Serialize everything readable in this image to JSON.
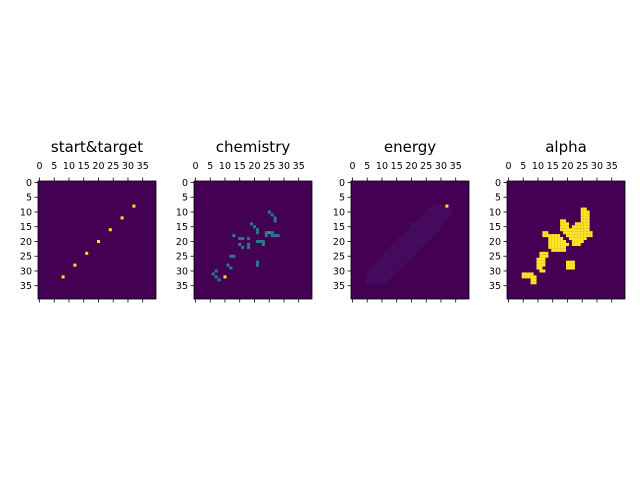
{
  "chart_data": {
    "type": "heatmap",
    "colormap": "viridis",
    "grid": false,
    "grid_size": [
      40,
      40
    ],
    "xticks": [
      "0",
      "5",
      "10",
      "15",
      "20",
      "25",
      "30",
      "35"
    ],
    "yticks": [
      "0",
      "5",
      "10",
      "15",
      "20",
      "25",
      "30",
      "35"
    ],
    "xtick_position": "top",
    "panels": [
      {
        "title": "start&target",
        "value_range": [
          0,
          1
        ],
        "cells": [
          {
            "x": 32,
            "y": 8,
            "v": 1
          },
          {
            "x": 28,
            "y": 12,
            "v": 1
          },
          {
            "x": 24,
            "y": 16,
            "v": 1
          },
          {
            "x": 20,
            "y": 20,
            "v": 1
          },
          {
            "x": 16,
            "y": 24,
            "v": 1
          },
          {
            "x": 12,
            "y": 28,
            "v": 1
          },
          {
            "x": 8,
            "y": 32,
            "v": 1
          }
        ]
      },
      {
        "title": "chemistry",
        "value_range": [
          0,
          1
        ],
        "cells": [
          {
            "x": 25,
            "y": 10,
            "v": 0.42
          },
          {
            "x": 26,
            "y": 11,
            "v": 0.42
          },
          {
            "x": 27,
            "y": 12,
            "v": 0.42
          },
          {
            "x": 27,
            "y": 13,
            "v": 0.42
          },
          {
            "x": 19,
            "y": 14,
            "v": 0.42
          },
          {
            "x": 20,
            "y": 15,
            "v": 0.42
          },
          {
            "x": 21,
            "y": 16,
            "v": 0.42
          },
          {
            "x": 21,
            "y": 17,
            "v": 0.42
          },
          {
            "x": 24,
            "y": 17,
            "v": 0.42
          },
          {
            "x": 25,
            "y": 17,
            "v": 0.6
          },
          {
            "x": 26,
            "y": 17,
            "v": 0.42
          },
          {
            "x": 24,
            "y": 18,
            "v": 0.42
          },
          {
            "x": 26,
            "y": 18,
            "v": 0.42
          },
          {
            "x": 27,
            "y": 18,
            "v": 0.42
          },
          {
            "x": 28,
            "y": 18,
            "v": 0.42
          },
          {
            "x": 13,
            "y": 18,
            "v": 0.42
          },
          {
            "x": 15,
            "y": 19,
            "v": 0.42
          },
          {
            "x": 16,
            "y": 19,
            "v": 0.42
          },
          {
            "x": 18,
            "y": 19,
            "v": 0.42
          },
          {
            "x": 21,
            "y": 20,
            "v": 0.42
          },
          {
            "x": 22,
            "y": 20,
            "v": 0.42
          },
          {
            "x": 23,
            "y": 20,
            "v": 0.42
          },
          {
            "x": 15,
            "y": 21,
            "v": 0.42
          },
          {
            "x": 18,
            "y": 21,
            "v": 0.42
          },
          {
            "x": 23,
            "y": 21,
            "v": 0.42
          },
          {
            "x": 16,
            "y": 22,
            "v": 0.42
          },
          {
            "x": 18,
            "y": 22,
            "v": 0.42
          },
          {
            "x": 12,
            "y": 25,
            "v": 0.42
          },
          {
            "x": 13,
            "y": 25,
            "v": 0.42
          },
          {
            "x": 21,
            "y": 27,
            "v": 0.42
          },
          {
            "x": 21,
            "y": 28,
            "v": 0.42
          },
          {
            "x": 11,
            "y": 28,
            "v": 0.42
          },
          {
            "x": 12,
            "y": 29,
            "v": 0.42
          },
          {
            "x": 7,
            "y": 30,
            "v": 0.42
          },
          {
            "x": 6,
            "y": 31,
            "v": 0.42
          },
          {
            "x": 7,
            "y": 32,
            "v": 0.42
          },
          {
            "x": 10,
            "y": 32,
            "v": 1
          },
          {
            "x": 8,
            "y": 33,
            "v": 0.42
          }
        ]
      },
      {
        "title": "energy",
        "value_range": [
          0,
          1
        ],
        "background_region": {
          "x_range": [
            5,
            33
          ],
          "y_range": [
            8,
            34
          ],
          "v": 0.04
        },
        "cells": [
          {
            "x": 32,
            "y": 8,
            "v": 1
          }
        ]
      },
      {
        "title": "alpha",
        "value_range": [
          0,
          1
        ],
        "cells": [
          {
            "x": 25,
            "y": 9,
            "v": 1
          },
          {
            "x": 26,
            "y": 9,
            "v": 1
          },
          {
            "x": 25,
            "y": 10,
            "v": 1
          },
          {
            "x": 26,
            "y": 10,
            "v": 1
          },
          {
            "x": 27,
            "y": 10,
            "v": 1
          },
          {
            "x": 25,
            "y": 11,
            "v": 1
          },
          {
            "x": 26,
            "y": 11,
            "v": 1
          },
          {
            "x": 27,
            "y": 11,
            "v": 1
          },
          {
            "x": 25,
            "y": 12,
            "v": 1
          },
          {
            "x": 26,
            "y": 12,
            "v": 1
          },
          {
            "x": 27,
            "y": 12,
            "v": 1
          },
          {
            "x": 18,
            "y": 13,
            "v": 1
          },
          {
            "x": 19,
            "y": 13,
            "v": 1
          },
          {
            "x": 25,
            "y": 13,
            "v": 1
          },
          {
            "x": 26,
            "y": 13,
            "v": 1
          },
          {
            "x": 27,
            "y": 13,
            "v": 1
          },
          {
            "x": 18,
            "y": 14,
            "v": 1
          },
          {
            "x": 19,
            "y": 14,
            "v": 1
          },
          {
            "x": 20,
            "y": 14,
            "v": 1
          },
          {
            "x": 23,
            "y": 14,
            "v": 1
          },
          {
            "x": 24,
            "y": 14,
            "v": 1
          },
          {
            "x": 25,
            "y": 14,
            "v": 1
          },
          {
            "x": 26,
            "y": 14,
            "v": 1
          },
          {
            "x": 27,
            "y": 14,
            "v": 1
          },
          {
            "x": 18,
            "y": 15,
            "v": 1
          },
          {
            "x": 19,
            "y": 15,
            "v": 1
          },
          {
            "x": 20,
            "y": 15,
            "v": 1
          },
          {
            "x": 22,
            "y": 15,
            "v": 1
          },
          {
            "x": 23,
            "y": 15,
            "v": 1
          },
          {
            "x": 24,
            "y": 15,
            "v": 1
          },
          {
            "x": 25,
            "y": 15,
            "v": 1
          },
          {
            "x": 26,
            "y": 15,
            "v": 1
          },
          {
            "x": 27,
            "y": 15,
            "v": 1
          },
          {
            "x": 18,
            "y": 16,
            "v": 1
          },
          {
            "x": 19,
            "y": 16,
            "v": 1
          },
          {
            "x": 20,
            "y": 16,
            "v": 1
          },
          {
            "x": 21,
            "y": 16,
            "v": 1
          },
          {
            "x": 22,
            "y": 16,
            "v": 1
          },
          {
            "x": 23,
            "y": 16,
            "v": 1
          },
          {
            "x": 24,
            "y": 16,
            "v": 1
          },
          {
            "x": 25,
            "y": 16,
            "v": 1
          },
          {
            "x": 26,
            "y": 16,
            "v": 1
          },
          {
            "x": 27,
            "y": 16,
            "v": 1
          },
          {
            "x": 12,
            "y": 17,
            "v": 1
          },
          {
            "x": 13,
            "y": 17,
            "v": 1
          },
          {
            "x": 19,
            "y": 17,
            "v": 1
          },
          {
            "x": 20,
            "y": 17,
            "v": 1
          },
          {
            "x": 21,
            "y": 17,
            "v": 1
          },
          {
            "x": 22,
            "y": 17,
            "v": 1
          },
          {
            "x": 23,
            "y": 17,
            "v": 1
          },
          {
            "x": 24,
            "y": 17,
            "v": 1
          },
          {
            "x": 25,
            "y": 17,
            "v": 1
          },
          {
            "x": 26,
            "y": 17,
            "v": 1
          },
          {
            "x": 27,
            "y": 17,
            "v": 1
          },
          {
            "x": 28,
            "y": 17,
            "v": 1
          },
          {
            "x": 12,
            "y": 18,
            "v": 1
          },
          {
            "x": 13,
            "y": 18,
            "v": 1
          },
          {
            "x": 14,
            "y": 18,
            "v": 1
          },
          {
            "x": 15,
            "y": 18,
            "v": 1
          },
          {
            "x": 16,
            "y": 18,
            "v": 1
          },
          {
            "x": 17,
            "y": 18,
            "v": 1
          },
          {
            "x": 20,
            "y": 18,
            "v": 1
          },
          {
            "x": 21,
            "y": 18,
            "v": 1
          },
          {
            "x": 22,
            "y": 18,
            "v": 1
          },
          {
            "x": 23,
            "y": 18,
            "v": 1
          },
          {
            "x": 24,
            "y": 18,
            "v": 1
          },
          {
            "x": 25,
            "y": 18,
            "v": 1
          },
          {
            "x": 26,
            "y": 18,
            "v": 1
          },
          {
            "x": 27,
            "y": 18,
            "v": 1
          },
          {
            "x": 28,
            "y": 18,
            "v": 1
          },
          {
            "x": 14,
            "y": 19,
            "v": 1
          },
          {
            "x": 15,
            "y": 19,
            "v": 1
          },
          {
            "x": 16,
            "y": 19,
            "v": 1
          },
          {
            "x": 17,
            "y": 19,
            "v": 1
          },
          {
            "x": 18,
            "y": 19,
            "v": 1
          },
          {
            "x": 21,
            "y": 19,
            "v": 1
          },
          {
            "x": 22,
            "y": 19,
            "v": 1
          },
          {
            "x": 23,
            "y": 19,
            "v": 1
          },
          {
            "x": 24,
            "y": 19,
            "v": 1
          },
          {
            "x": 25,
            "y": 19,
            "v": 1
          },
          {
            "x": 26,
            "y": 19,
            "v": 1
          },
          {
            "x": 14,
            "y": 20,
            "v": 1
          },
          {
            "x": 15,
            "y": 20,
            "v": 1
          },
          {
            "x": 16,
            "y": 20,
            "v": 1
          },
          {
            "x": 17,
            "y": 20,
            "v": 1
          },
          {
            "x": 18,
            "y": 20,
            "v": 1
          },
          {
            "x": 19,
            "y": 20,
            "v": 1
          },
          {
            "x": 22,
            "y": 20,
            "v": 1
          },
          {
            "x": 23,
            "y": 20,
            "v": 1
          },
          {
            "x": 24,
            "y": 20,
            "v": 1
          },
          {
            "x": 25,
            "y": 20,
            "v": 1
          },
          {
            "x": 14,
            "y": 21,
            "v": 1
          },
          {
            "x": 15,
            "y": 21,
            "v": 1
          },
          {
            "x": 16,
            "y": 21,
            "v": 1
          },
          {
            "x": 17,
            "y": 21,
            "v": 1
          },
          {
            "x": 18,
            "y": 21,
            "v": 1
          },
          {
            "x": 19,
            "y": 21,
            "v": 1
          },
          {
            "x": 20,
            "y": 21,
            "v": 1
          },
          {
            "x": 22,
            "y": 21,
            "v": 1
          },
          {
            "x": 23,
            "y": 21,
            "v": 1
          },
          {
            "x": 24,
            "y": 21,
            "v": 1
          },
          {
            "x": 14,
            "y": 22,
            "v": 1
          },
          {
            "x": 15,
            "y": 22,
            "v": 1
          },
          {
            "x": 16,
            "y": 22,
            "v": 1
          },
          {
            "x": 17,
            "y": 22,
            "v": 1
          },
          {
            "x": 18,
            "y": 22,
            "v": 1
          },
          {
            "x": 19,
            "y": 22,
            "v": 1
          },
          {
            "x": 15,
            "y": 23,
            "v": 1
          },
          {
            "x": 16,
            "y": 23,
            "v": 1
          },
          {
            "x": 17,
            "y": 23,
            "v": 1
          },
          {
            "x": 18,
            "y": 23,
            "v": 1
          },
          {
            "x": 19,
            "y": 23,
            "v": 1
          },
          {
            "x": 11,
            "y": 24,
            "v": 1
          },
          {
            "x": 12,
            "y": 24,
            "v": 1
          },
          {
            "x": 13,
            "y": 24,
            "v": 1
          },
          {
            "x": 11,
            "y": 25,
            "v": 1
          },
          {
            "x": 12,
            "y": 25,
            "v": 1
          },
          {
            "x": 13,
            "y": 25,
            "v": 1
          },
          {
            "x": 10,
            "y": 26,
            "v": 1
          },
          {
            "x": 11,
            "y": 26,
            "v": 1
          },
          {
            "x": 12,
            "y": 26,
            "v": 1
          },
          {
            "x": 10,
            "y": 27,
            "v": 1
          },
          {
            "x": 11,
            "y": 27,
            "v": 1
          },
          {
            "x": 12,
            "y": 27,
            "v": 1
          },
          {
            "x": 20,
            "y": 27,
            "v": 1
          },
          {
            "x": 21,
            "y": 27,
            "v": 1
          },
          {
            "x": 22,
            "y": 27,
            "v": 1
          },
          {
            "x": 10,
            "y": 28,
            "v": 1
          },
          {
            "x": 11,
            "y": 28,
            "v": 1
          },
          {
            "x": 12,
            "y": 28,
            "v": 1
          },
          {
            "x": 20,
            "y": 28,
            "v": 1
          },
          {
            "x": 21,
            "y": 28,
            "v": 1
          },
          {
            "x": 22,
            "y": 28,
            "v": 1
          },
          {
            "x": 10,
            "y": 29,
            "v": 1
          },
          {
            "x": 11,
            "y": 29,
            "v": 1
          },
          {
            "x": 20,
            "y": 29,
            "v": 1
          },
          {
            "x": 21,
            "y": 29,
            "v": 1
          },
          {
            "x": 22,
            "y": 29,
            "v": 1
          },
          {
            "x": 11,
            "y": 30,
            "v": 1
          },
          {
            "x": 12,
            "y": 30,
            "v": 1
          },
          {
            "x": 5,
            "y": 31,
            "v": 1
          },
          {
            "x": 6,
            "y": 31,
            "v": 1
          },
          {
            "x": 7,
            "y": 31,
            "v": 1
          },
          {
            "x": 8,
            "y": 31,
            "v": 1
          },
          {
            "x": 5,
            "y": 32,
            "v": 1
          },
          {
            "x": 6,
            "y": 32,
            "v": 1
          },
          {
            "x": 7,
            "y": 32,
            "v": 1
          },
          {
            "x": 8,
            "y": 32,
            "v": 1
          },
          {
            "x": 9,
            "y": 32,
            "v": 1
          },
          {
            "x": 8,
            "y": 33,
            "v": 1
          },
          {
            "x": 9,
            "y": 33,
            "v": 1
          },
          {
            "x": 8,
            "y": 34,
            "v": 1
          },
          {
            "x": 9,
            "y": 34,
            "v": 1
          }
        ]
      }
    ]
  },
  "colors": {
    "background": "#ffffff",
    "viridis_low": "#440154",
    "viridis_mid": "#21918c",
    "viridis_high": "#fde725"
  }
}
